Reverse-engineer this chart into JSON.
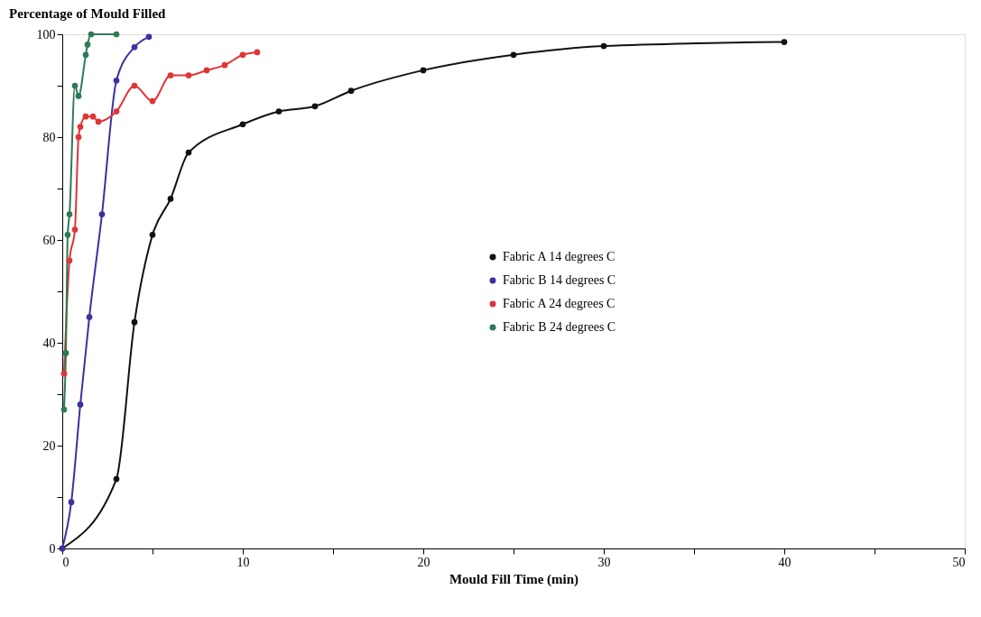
{
  "chart_data": {
    "type": "line",
    "xlabel": "Mould Fill Time (min)",
    "ylabel": "Percentage of Mould Filled",
    "xlim": [
      0,
      50
    ],
    "ylim": [
      0,
      100
    ],
    "xticks": [
      0,
      {
        "value": 5,
        "label": null
      },
      10,
      {
        "value": 15,
        "label": null
      },
      20,
      {
        "value": 25,
        "label": null
      },
      30,
      {
        "value": 35,
        "label": null
      },
      40,
      {
        "value": 45,
        "label": null
      },
      50
    ],
    "yticks": [
      0,
      {
        "value": 10,
        "label": null
      },
      20,
      {
        "value": 30,
        "label": null
      },
      40,
      {
        "value": 50,
        "label": null
      },
      60,
      {
        "value": 70,
        "label": null
      },
      80,
      {
        "value": 90,
        "label": null
      },
      100
    ],
    "grid": false,
    "legend": "right",
    "marker": "circle",
    "line_style": "solid",
    "series": [
      {
        "name": "Fabric A 14 degrees C",
        "color": "#111111",
        "x": [
          0,
          3,
          4,
          5,
          6,
          7,
          10,
          12,
          14,
          16,
          20,
          25,
          30,
          40
        ],
        "values": [
          0,
          13.5,
          44,
          61,
          68,
          77,
          82.5,
          85,
          86,
          89,
          93,
          96,
          97.7,
          98.5
        ]
      },
      {
        "name": "Fabric B 14 degrees C",
        "color": "#3a32a0",
        "x": [
          0,
          0.5,
          1,
          1.5,
          2.2,
          3,
          4,
          4.8
        ],
        "values": [
          0,
          9,
          28,
          45,
          65,
          91,
          97.5,
          99.5
        ]
      },
      {
        "name": "Fabric A 24 degrees C",
        "color": "#e03535",
        "x": [
          0.1,
          0.4,
          0.7,
          0.9,
          1,
          1.3,
          1.7,
          2,
          3,
          4,
          5,
          6,
          7,
          8,
          9,
          10,
          10.8
        ],
        "values": [
          34,
          56,
          62,
          80,
          82,
          84,
          84,
          83,
          85,
          90,
          87,
          92,
          92,
          93,
          94,
          96,
          96.5
        ]
      },
      {
        "name": "Fabric B 24 degrees C",
        "color": "#2e7a55",
        "x": [
          0.1,
          0.2,
          0.3,
          0.4,
          0.7,
          0.9,
          1.3,
          1.4,
          1.6,
          3
        ],
        "values": [
          27,
          38,
          61,
          65,
          90,
          88,
          96,
          98,
          100,
          100
        ]
      }
    ]
  }
}
